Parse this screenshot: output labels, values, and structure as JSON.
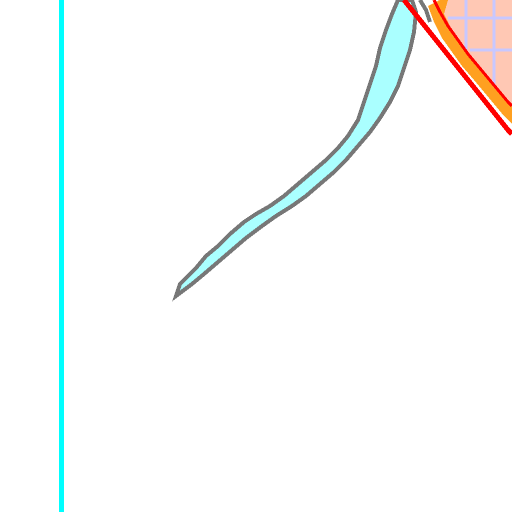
{
  "scene": {
    "background": "#ffffff",
    "guide_line_color": "#00ffff",
    "blade_fill": "#aaffff",
    "blade_outline": "#777777",
    "corner_fill": "#ffc8b4",
    "corner_grid": "#c8c8ff",
    "border_red": "#ff0000",
    "border_orange": "#ffa020",
    "border_dark": "#000000"
  }
}
